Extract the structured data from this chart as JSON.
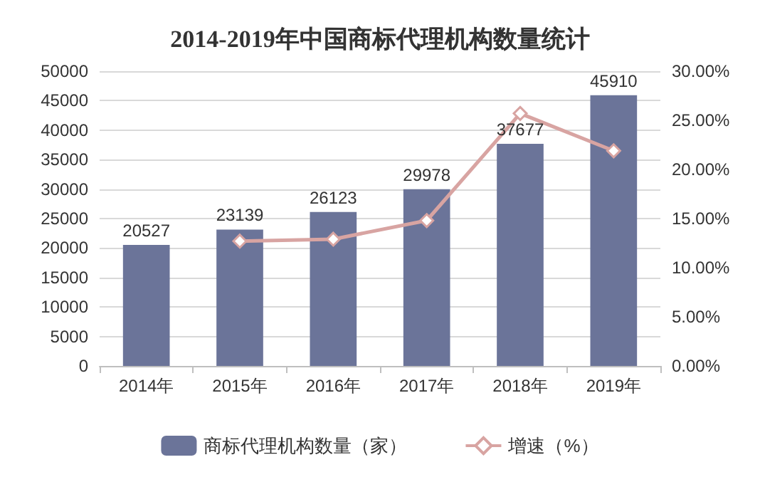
{
  "chart_data": {
    "type": "bar",
    "title": "2014-2019年中国商标代理机构数量统计",
    "categories": [
      "2014年",
      "2015年",
      "2016年",
      "2017年",
      "2018年",
      "2019年"
    ],
    "series": [
      {
        "name": "商标代理机构数量（家）",
        "color": "#6b7499",
        "values": [
          20527,
          23139,
          26123,
          29978,
          37677,
          45910
        ],
        "value_labels": [
          "20527",
          "23139",
          "26123",
          "29978",
          "37677",
          "45910"
        ]
      },
      {
        "name": "增速（%）",
        "type": "line",
        "axis": "y2",
        "color": "#d8a4a2",
        "values": [
          null,
          12.7,
          12.9,
          14.8,
          25.7,
          21.9
        ]
      }
    ],
    "ylim": [
      0,
      50000
    ],
    "yticks": [
      0,
      5000,
      10000,
      15000,
      20000,
      25000,
      30000,
      35000,
      40000,
      45000,
      50000
    ],
    "y2lim": [
      0,
      30
    ],
    "y2ticks": [
      {
        "value": 0,
        "label": "0.00%"
      },
      {
        "value": 5,
        "label": "5.00%"
      },
      {
        "value": 10,
        "label": "10.00%"
      },
      {
        "value": 15,
        "label": "15.00%"
      },
      {
        "value": 20,
        "label": "20.00%"
      },
      {
        "value": 25,
        "label": "25.00%"
      },
      {
        "value": 30,
        "label": "30.00%"
      }
    ],
    "grid": "y",
    "legend": "bottom",
    "marker": "diamond"
  }
}
